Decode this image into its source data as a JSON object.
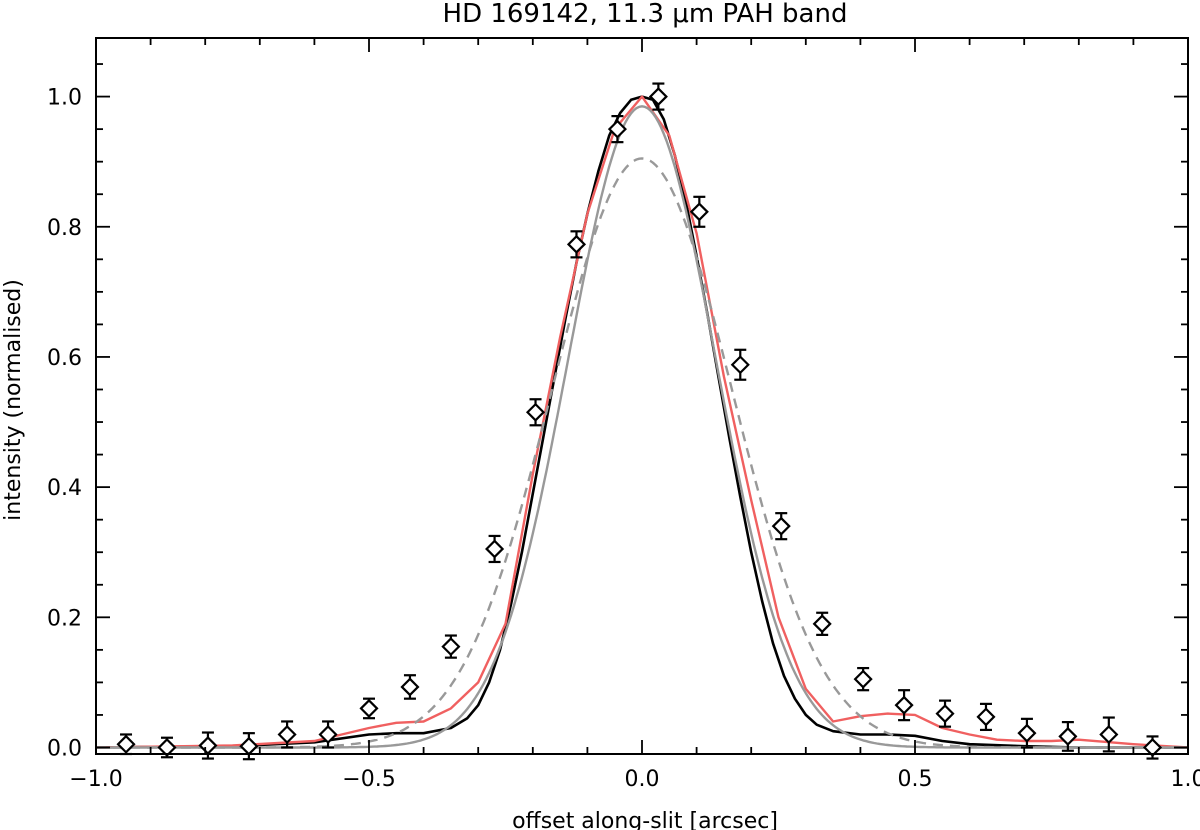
{
  "chart_data": {
    "type": "line",
    "title": "HD 169142, 11.3 μm PAH band",
    "xlabel": "offset along-slit [arcsec]",
    "ylabel": "intensity (normalised)",
    "xlim": [
      -1.0,
      1.0
    ],
    "ylim": [
      -0.01,
      1.09
    ],
    "x_ticks": [
      -1.0,
      -0.5,
      0.0,
      0.5,
      1.0
    ],
    "x_tick_labels": [
      "−1.0",
      "−0.5",
      "0.0",
      "0.5",
      "1.0"
    ],
    "y_ticks": [
      0.0,
      0.2,
      0.4,
      0.6,
      0.8,
      1.0
    ],
    "y_tick_labels": [
      "0.0",
      "0.2",
      "0.4",
      "0.6",
      "0.8",
      "1.0"
    ],
    "series": [
      {
        "name": "observed",
        "style": "points-errorbars",
        "marker": "diamond",
        "color": "#000000",
        "x": [
          -0.945,
          -0.87,
          -0.795,
          -0.72,
          -0.65,
          -0.575,
          -0.5,
          -0.425,
          -0.35,
          -0.27,
          -0.195,
          -0.12,
          -0.045,
          0.03,
          0.105,
          0.18,
          0.255,
          0.33,
          0.405,
          0.48,
          0.555,
          0.63,
          0.705,
          0.78,
          0.855,
          0.935
        ],
        "y": [
          0.005,
          0.0,
          0.003,
          0.002,
          0.02,
          0.02,
          0.06,
          0.093,
          0.155,
          0.305,
          0.515,
          0.773,
          0.95,
          1.0,
          0.823,
          0.588,
          0.34,
          0.19,
          0.105,
          0.065,
          0.052,
          0.047,
          0.022,
          0.017,
          0.02,
          0.0
        ],
        "err": [
          0.015,
          0.015,
          0.02,
          0.02,
          0.02,
          0.02,
          0.015,
          0.018,
          0.017,
          0.02,
          0.02,
          0.02,
          0.02,
          0.02,
          0.023,
          0.023,
          0.02,
          0.017,
          0.017,
          0.023,
          0.02,
          0.02,
          0.022,
          0.022,
          0.026,
          0.017
        ]
      },
      {
        "name": "black solid model",
        "style": "line",
        "color": "#000000",
        "x": [
          -1.0,
          -0.75,
          -0.6,
          -0.5,
          -0.45,
          -0.4,
          -0.35,
          -0.32,
          -0.3,
          -0.28,
          -0.26,
          -0.24,
          -0.22,
          -0.2,
          -0.18,
          -0.16,
          -0.14,
          -0.12,
          -0.1,
          -0.08,
          -0.06,
          -0.04,
          -0.02,
          0.0,
          0.02,
          0.04,
          0.06,
          0.08,
          0.1,
          0.12,
          0.14,
          0.16,
          0.18,
          0.2,
          0.22,
          0.24,
          0.26,
          0.28,
          0.3,
          0.32,
          0.35,
          0.4,
          0.45,
          0.5,
          0.55,
          0.6,
          0.7,
          0.8,
          1.0
        ],
        "y": [
          0.0,
          0.002,
          0.008,
          0.02,
          0.022,
          0.022,
          0.03,
          0.045,
          0.065,
          0.1,
          0.15,
          0.22,
          0.3,
          0.39,
          0.48,
          0.57,
          0.66,
          0.745,
          0.82,
          0.885,
          0.94,
          0.975,
          0.995,
          1.0,
          0.995,
          0.965,
          0.91,
          0.84,
          0.755,
          0.665,
          0.57,
          0.475,
          0.385,
          0.3,
          0.225,
          0.16,
          0.11,
          0.075,
          0.05,
          0.035,
          0.025,
          0.02,
          0.02,
          0.018,
          0.01,
          0.005,
          0.002,
          0.0,
          0.0
        ]
      },
      {
        "name": "red solid model",
        "style": "line",
        "color": "#f06060",
        "x": [
          -1.0,
          -0.75,
          -0.6,
          -0.5,
          -0.45,
          -0.4,
          -0.35,
          -0.3,
          -0.25,
          -0.2,
          -0.15,
          -0.1,
          -0.05,
          0.0,
          0.05,
          0.1,
          0.15,
          0.2,
          0.25,
          0.3,
          0.35,
          0.4,
          0.45,
          0.5,
          0.55,
          0.6,
          0.65,
          0.7,
          0.75,
          0.8,
          0.9,
          1.0
        ],
        "y": [
          0.0,
          0.003,
          0.01,
          0.03,
          0.038,
          0.04,
          0.06,
          0.1,
          0.19,
          0.42,
          0.63,
          0.82,
          0.95,
          1.0,
          0.94,
          0.79,
          0.57,
          0.38,
          0.2,
          0.09,
          0.04,
          0.048,
          0.052,
          0.05,
          0.03,
          0.02,
          0.012,
          0.01,
          0.01,
          0.012,
          0.005,
          0.0
        ]
      },
      {
        "name": "gray solid fit",
        "style": "line",
        "color": "#999999",
        "gaussian": {
          "amplitude": 0.985,
          "center": 0.0,
          "sigma": 0.135
        }
      },
      {
        "name": "gray dashed fit",
        "style": "dashed",
        "color": "#999999",
        "gaussian": {
          "amplitude": 0.905,
          "center": 0.0,
          "sigma": 0.165
        }
      }
    ]
  }
}
